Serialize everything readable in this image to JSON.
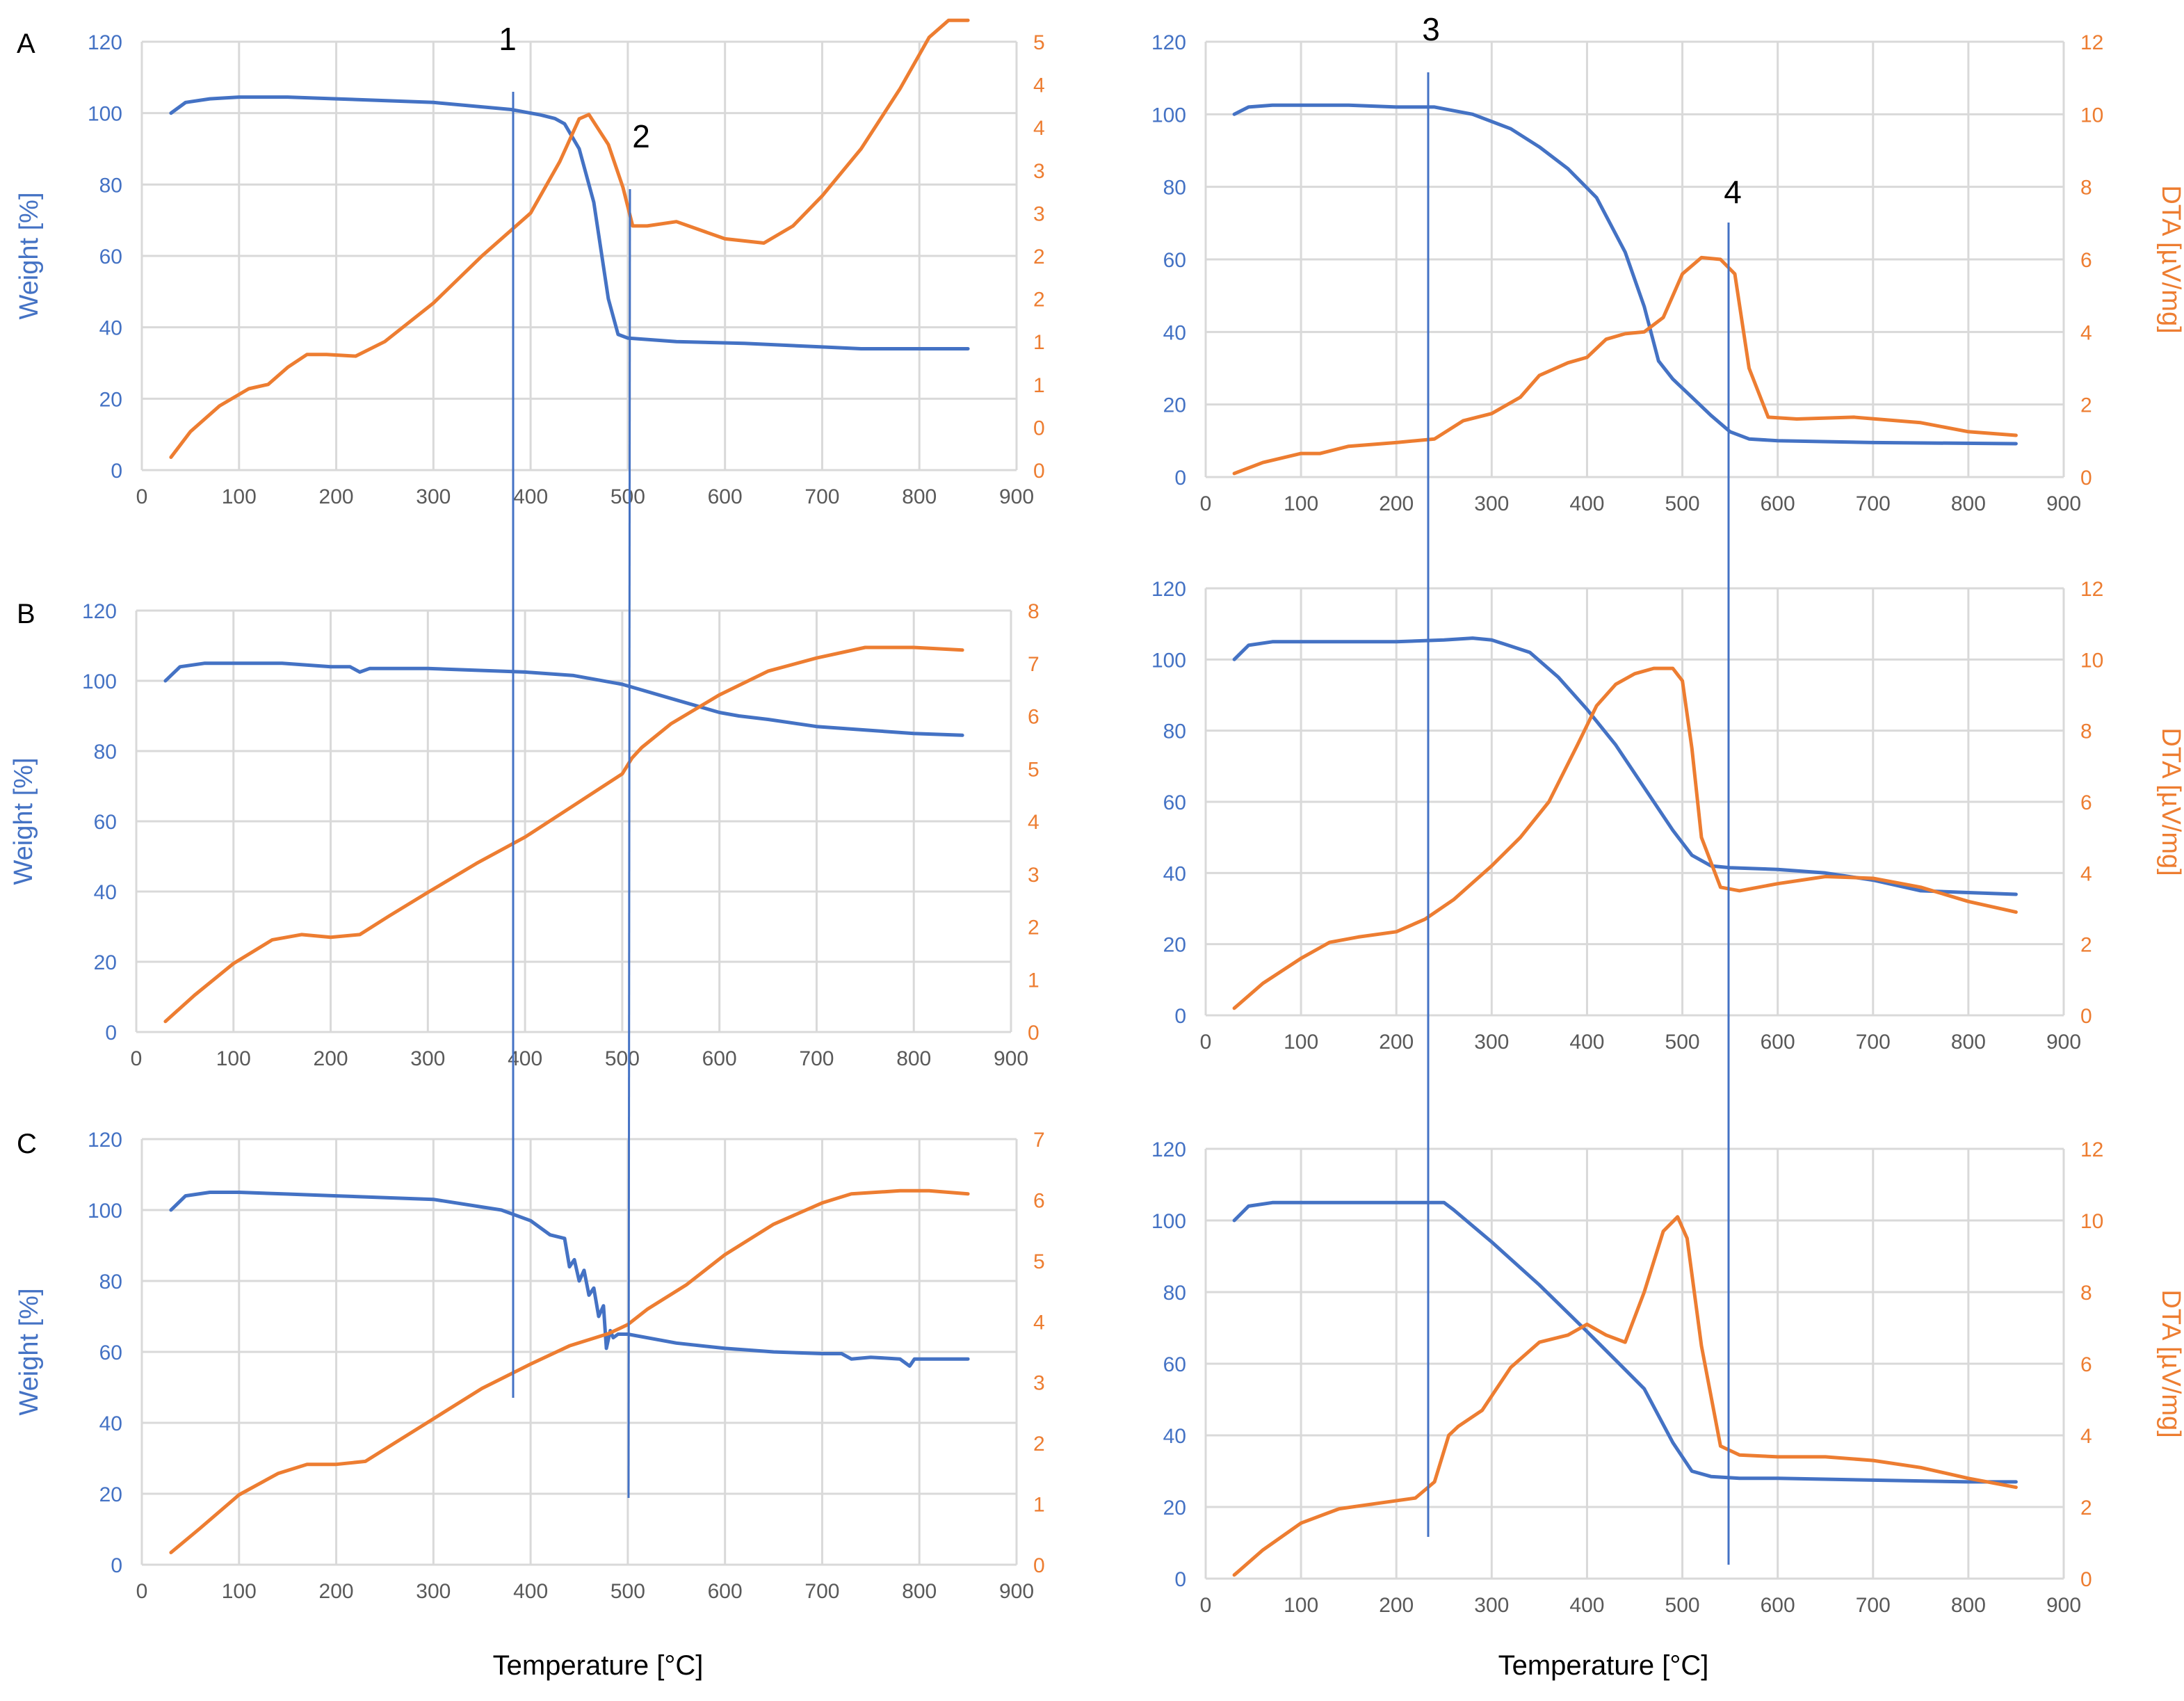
{
  "colors": {
    "weight": "#4472c4",
    "dta": "#ed7d31",
    "grid": "#d9d9d9",
    "marker": "#4472c4"
  },
  "figure": {
    "x_title_left": "Temperature [°C]",
    "x_title_right": "Temperature [°C]",
    "markers": [
      {
        "label": "1",
        "x": 380
      },
      {
        "label": "2",
        "x": 500
      },
      {
        "label": "3",
        "x": 232
      },
      {
        "label": "4",
        "x": 547
      }
    ]
  },
  "chart_data": [
    {
      "type": "line",
      "panel_label": "A",
      "ylabel": "Weight [%]",
      "y2label": "",
      "xlim": [
        0,
        900
      ],
      "xticks": [
        0,
        100,
        200,
        300,
        400,
        500,
        600,
        700,
        800,
        900
      ],
      "ylim": [
        0,
        120
      ],
      "yticks": [
        0,
        20,
        40,
        60,
        80,
        100,
        120
      ],
      "y2lim": [
        0,
        5
      ],
      "y2ticks": [
        0,
        0.5,
        1,
        1.5,
        2,
        2.5,
        3,
        3.5,
        4,
        4.5,
        5
      ],
      "y2ticklabels": [
        "0",
        "0",
        "1",
        "1",
        "2",
        "2",
        "3",
        "3",
        "4",
        "4",
        "5"
      ],
      "series": [
        {
          "name": "Weight",
          "axis": "left",
          "x": [
            30,
            45,
            70,
            100,
            150,
            200,
            300,
            380,
            410,
            425,
            435,
            450,
            465,
            480,
            490,
            500,
            550,
            620,
            700,
            740,
            800,
            850
          ],
          "y": [
            100,
            103,
            104,
            104.5,
            104.5,
            104,
            103,
            101,
            99.5,
            98.5,
            97,
            90,
            75,
            48,
            38,
            37,
            36,
            35.5,
            34.5,
            34,
            34,
            34
          ]
        },
        {
          "name": "DTA",
          "axis": "right",
          "x": [
            30,
            50,
            80,
            110,
            130,
            150,
            170,
            190,
            220,
            250,
            300,
            350,
            400,
            430,
            450,
            460,
            480,
            495,
            505,
            520,
            550,
            600,
            640,
            670,
            700,
            740,
            780,
            810,
            830,
            850
          ],
          "y": [
            0.15,
            0.45,
            0.75,
            0.95,
            1.0,
            1.2,
            1.35,
            1.35,
            1.33,
            1.5,
            1.95,
            2.5,
            3.0,
            3.6,
            4.1,
            4.15,
            3.8,
            3.3,
            2.85,
            2.85,
            2.9,
            2.7,
            2.65,
            2.85,
            3.2,
            3.75,
            4.45,
            5.05,
            5.25,
            5.25
          ]
        }
      ]
    },
    {
      "type": "line",
      "panel_label": "B",
      "ylabel": "Weight [%]",
      "y2label": "",
      "xlim": [
        0,
        900
      ],
      "xticks": [
        0,
        100,
        200,
        300,
        400,
        500,
        600,
        700,
        800,
        900
      ],
      "ylim": [
        0,
        120
      ],
      "yticks": [
        0,
        20,
        40,
        60,
        80,
        100,
        120
      ],
      "y2lim": [
        0,
        8
      ],
      "y2ticks": [
        0,
        1,
        2,
        3,
        4,
        5,
        6,
        7,
        8
      ],
      "y2ticklabels": [
        "0",
        "1",
        "2",
        "3",
        "4",
        "5",
        "6",
        "7",
        "8"
      ],
      "series": [
        {
          "name": "Weight",
          "axis": "left",
          "x": [
            30,
            45,
            70,
            100,
            150,
            200,
            220,
            230,
            240,
            300,
            400,
            450,
            500,
            550,
            600,
            620,
            650,
            700,
            750,
            800,
            850
          ],
          "y": [
            100,
            104,
            105,
            105,
            105,
            104,
            104,
            102.5,
            103.5,
            103.5,
            102.5,
            101.5,
            99,
            95,
            91,
            90,
            89,
            87,
            86,
            85,
            84.5
          ]
        },
        {
          "name": "DTA",
          "axis": "right",
          "x": [
            30,
            60,
            100,
            140,
            170,
            200,
            230,
            260,
            300,
            350,
            400,
            450,
            500,
            510,
            520,
            550,
            600,
            650,
            700,
            750,
            800,
            850
          ],
          "y": [
            0.2,
            0.7,
            1.3,
            1.75,
            1.85,
            1.8,
            1.85,
            2.2,
            2.65,
            3.2,
            3.7,
            4.3,
            4.9,
            5.2,
            5.4,
            5.85,
            6.4,
            6.85,
            7.1,
            7.3,
            7.3,
            7.25
          ]
        }
      ]
    },
    {
      "type": "line",
      "panel_label": "C",
      "ylabel": "Weight [%]",
      "y2label": "",
      "xlim": [
        0,
        900
      ],
      "xticks": [
        0,
        100,
        200,
        300,
        400,
        500,
        600,
        700,
        800,
        900
      ],
      "ylim": [
        0,
        120
      ],
      "yticks": [
        0,
        20,
        40,
        60,
        80,
        100,
        120
      ],
      "y2lim": [
        0,
        7
      ],
      "y2ticks": [
        0,
        1,
        2,
        3,
        4,
        5,
        6,
        7
      ],
      "y2ticklabels": [
        "0",
        "1",
        "2",
        "3",
        "4",
        "5",
        "6",
        "7"
      ],
      "series": [
        {
          "name": "Weight",
          "axis": "left",
          "x": [
            30,
            45,
            70,
            100,
            150,
            200,
            300,
            370,
            400,
            420,
            435,
            440,
            445,
            450,
            455,
            460,
            465,
            470,
            475,
            478,
            482,
            485,
            490,
            500,
            550,
            600,
            650,
            700,
            720,
            730,
            750,
            780,
            790,
            795,
            800,
            850
          ],
          "y": [
            100,
            104,
            105,
            105,
            104.5,
            104,
            103,
            100,
            97,
            93,
            92,
            84,
            86,
            80,
            83,
            76,
            78,
            70,
            73,
            61,
            66,
            64,
            65,
            65,
            62.5,
            61,
            60,
            59.5,
            59.5,
            58,
            58.5,
            58,
            56,
            58,
            58,
            58
          ]
        },
        {
          "name": "DTA",
          "axis": "right",
          "x": [
            30,
            60,
            100,
            140,
            170,
            200,
            230,
            260,
            300,
            350,
            400,
            440,
            460,
            480,
            500,
            520,
            560,
            600,
            650,
            700,
            730,
            780,
            810,
            850
          ],
          "y": [
            0.2,
            0.6,
            1.15,
            1.5,
            1.65,
            1.65,
            1.7,
            2.0,
            2.4,
            2.9,
            3.3,
            3.6,
            3.7,
            3.8,
            3.95,
            4.2,
            4.6,
            5.1,
            5.6,
            5.95,
            6.1,
            6.15,
            6.15,
            6.1
          ]
        }
      ]
    },
    {
      "type": "line",
      "panel_label": "",
      "ylabel": "",
      "y2label": "DTA [µV/mg]",
      "xlim": [
        0,
        900
      ],
      "xticks": [
        0,
        100,
        200,
        300,
        400,
        500,
        600,
        700,
        800,
        900
      ],
      "ylim": [
        0,
        120
      ],
      "yticks": [
        0,
        20,
        40,
        60,
        80,
        100,
        120
      ],
      "y2lim": [
        0,
        12
      ],
      "y2ticks": [
        0,
        2,
        4,
        6,
        8,
        10,
        12
      ],
      "y2ticklabels": [
        "0",
        "2",
        "4",
        "6",
        "8",
        "10",
        "12"
      ],
      "series": [
        {
          "name": "Weight",
          "axis": "left",
          "x": [
            30,
            45,
            70,
            100,
            150,
            200,
            240,
            280,
            320,
            350,
            380,
            410,
            440,
            460,
            475,
            490,
            510,
            530,
            550,
            570,
            600,
            700,
            850
          ],
          "y": [
            100,
            102,
            102.5,
            102.5,
            102.5,
            102,
            102,
            100,
            96,
            91,
            85,
            77,
            62,
            47,
            32,
            27,
            22,
            17,
            12.5,
            10.5,
            10,
            9.5,
            9.2
          ]
        },
        {
          "name": "DTA",
          "axis": "right",
          "x": [
            30,
            60,
            100,
            120,
            150,
            200,
            240,
            270,
            300,
            330,
            350,
            380,
            400,
            420,
            440,
            460,
            480,
            500,
            520,
            540,
            555,
            570,
            590,
            620,
            680,
            750,
            800,
            850
          ],
          "y": [
            0.1,
            0.4,
            0.65,
            0.65,
            0.85,
            0.95,
            1.05,
            1.55,
            1.75,
            2.2,
            2.8,
            3.15,
            3.3,
            3.8,
            3.95,
            4.0,
            4.4,
            5.6,
            6.05,
            6.0,
            5.6,
            3.0,
            1.65,
            1.6,
            1.65,
            1.5,
            1.25,
            1.15
          ]
        }
      ]
    },
    {
      "type": "line",
      "panel_label": "",
      "ylabel": "",
      "y2label": "DTA [µV/mg]",
      "xlim": [
        0,
        900
      ],
      "xticks": [
        0,
        100,
        200,
        300,
        400,
        500,
        600,
        700,
        800,
        900
      ],
      "ylim": [
        0,
        120
      ],
      "yticks": [
        0,
        20,
        40,
        60,
        80,
        100,
        120
      ],
      "y2lim": [
        0,
        12
      ],
      "y2ticks": [
        0,
        2,
        4,
        6,
        8,
        10,
        12
      ],
      "y2ticklabels": [
        "0",
        "2",
        "4",
        "6",
        "8",
        "10",
        "12"
      ],
      "series": [
        {
          "name": "Weight",
          "axis": "left",
          "x": [
            30,
            45,
            70,
            100,
            150,
            200,
            250,
            280,
            300,
            340,
            370,
            400,
            430,
            460,
            490,
            510,
            530,
            550,
            600,
            650,
            700,
            750,
            800,
            850
          ],
          "y": [
            100,
            104,
            105,
            105,
            105,
            105,
            105.5,
            106,
            105.5,
            102,
            95,
            86,
            76,
            64,
            52,
            45,
            42,
            41.5,
            41,
            40,
            38,
            35,
            34.5,
            34
          ]
        },
        {
          "name": "DTA",
          "axis": "right",
          "x": [
            30,
            60,
            100,
            130,
            160,
            200,
            230,
            260,
            300,
            330,
            360,
            390,
            410,
            430,
            450,
            470,
            490,
            500,
            510,
            520,
            540,
            560,
            600,
            650,
            700,
            750,
            800,
            850
          ],
          "y": [
            0.2,
            0.9,
            1.6,
            2.05,
            2.2,
            2.35,
            2.7,
            3.25,
            4.2,
            5.0,
            6.0,
            7.6,
            8.7,
            9.3,
            9.6,
            9.75,
            9.75,
            9.4,
            7.5,
            5.0,
            3.6,
            3.5,
            3.7,
            3.9,
            3.85,
            3.6,
            3.2,
            2.9
          ]
        }
      ]
    },
    {
      "type": "line",
      "panel_label": "",
      "ylabel": "",
      "y2label": "DTA [µV/mg]",
      "xlim": [
        0,
        900
      ],
      "xticks": [
        0,
        100,
        200,
        300,
        400,
        500,
        600,
        700,
        800,
        900
      ],
      "ylim": [
        0,
        120
      ],
      "yticks": [
        0,
        20,
        40,
        60,
        80,
        100,
        120
      ],
      "y2lim": [
        0,
        12
      ],
      "y2ticks": [
        0,
        2,
        4,
        6,
        8,
        10,
        12
      ],
      "y2ticklabels": [
        "0",
        "2",
        "4",
        "6",
        "8",
        "10",
        "12"
      ],
      "series": [
        {
          "name": "Weight",
          "axis": "left",
          "x": [
            30,
            45,
            70,
            100,
            150,
            200,
            250,
            260,
            300,
            350,
            400,
            430,
            460,
            490,
            510,
            530,
            560,
            600,
            700,
            800,
            850
          ],
          "y": [
            100,
            104,
            105,
            105,
            105,
            105,
            105,
            103,
            94,
            82,
            69,
            61,
            53,
            38,
            30,
            28.5,
            28,
            28,
            27.5,
            27,
            27
          ]
        },
        {
          "name": "DTA",
          "axis": "right",
          "x": [
            30,
            60,
            100,
            140,
            180,
            220,
            240,
            255,
            265,
            290,
            320,
            350,
            380,
            400,
            420,
            440,
            460,
            480,
            495,
            505,
            520,
            540,
            560,
            600,
            650,
            700,
            750,
            800,
            850
          ],
          "y": [
            0.1,
            0.8,
            1.55,
            1.95,
            2.1,
            2.25,
            2.7,
            4.0,
            4.25,
            4.7,
            5.9,
            6.6,
            6.8,
            7.1,
            6.8,
            6.6,
            8.0,
            9.7,
            10.1,
            9.5,
            6.5,
            3.7,
            3.45,
            3.4,
            3.4,
            3.3,
            3.1,
            2.8,
            2.55
          ]
        }
      ]
    }
  ]
}
